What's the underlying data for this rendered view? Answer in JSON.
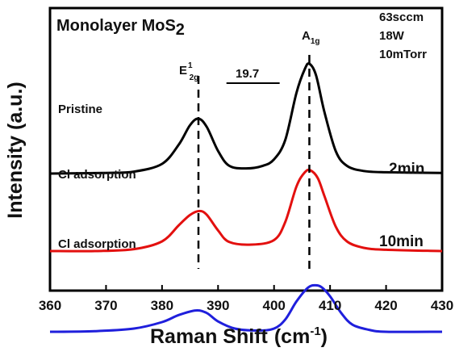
{
  "chart_data": {
    "type": "line",
    "title": "Monolayer MoS",
    "title_subscript": "2",
    "conditions": [
      "63sccm",
      "18W",
      "10mTorr"
    ],
    "xlabel": "Raman Shift",
    "xlabel_units": "(cm",
    "xlabel_units_sup": "-1",
    "xlabel_units_close": ")",
    "ylabel": "Intensity (a.u.)",
    "xlim": [
      360,
      430
    ],
    "xticks": [
      "360",
      "370",
      "380",
      "390",
      "400",
      "410",
      "420",
      "430"
    ],
    "yticks": "none",
    "grid": false,
    "legend": "none",
    "peak_E": {
      "base": "E",
      "sup": "1",
      "sub": "2g",
      "x": 386.5
    },
    "peak_A": {
      "base": "A",
      "sub": "1g",
      "x": 406.3
    },
    "separation_label": "19.7",
    "separation_bar": [
      391.5,
      401
    ],
    "series": [
      {
        "name": "Pristine",
        "label": "Pristine",
        "time_label": "",
        "color": "#000000",
        "baseline": 1.1,
        "points": [
          [
            360,
            1.1
          ],
          [
            370,
            1.11
          ],
          [
            375,
            1.13
          ],
          [
            380,
            1.25
          ],
          [
            383,
            1.55
          ],
          [
            385,
            1.85
          ],
          [
            386.5,
            1.95
          ],
          [
            388,
            1.82
          ],
          [
            390,
            1.45
          ],
          [
            392,
            1.22
          ],
          [
            395,
            1.18
          ],
          [
            398,
            1.22
          ],
          [
            400,
            1.32
          ],
          [
            402,
            1.62
          ],
          [
            404,
            2.35
          ],
          [
            405.5,
            2.72
          ],
          [
            406.3,
            2.8
          ],
          [
            407.5,
            2.62
          ],
          [
            409,
            2.05
          ],
          [
            411,
            1.45
          ],
          [
            413,
            1.22
          ],
          [
            416,
            1.14
          ],
          [
            420,
            1.12
          ],
          [
            430,
            1.11
          ]
        ]
      },
      {
        "name": "Cl adsorption 2min",
        "label": "Cl adsorption",
        "time_label": "2min",
        "color": "#e3100f",
        "baseline": -0.1,
        "points": [
          [
            360,
            -0.1
          ],
          [
            368,
            -0.1
          ],
          [
            375,
            -0.07
          ],
          [
            380,
            0.05
          ],
          [
            383,
            0.3
          ],
          [
            385,
            0.46
          ],
          [
            386.7,
            0.52
          ],
          [
            388,
            0.46
          ],
          [
            390,
            0.22
          ],
          [
            392,
            0.04
          ],
          [
            396,
            0.0
          ],
          [
            400,
            0.07
          ],
          [
            402,
            0.35
          ],
          [
            404,
            0.9
          ],
          [
            405.5,
            1.12
          ],
          [
            406.5,
            1.15
          ],
          [
            407.8,
            1.03
          ],
          [
            409,
            0.75
          ],
          [
            411,
            0.28
          ],
          [
            413,
            0.05
          ],
          [
            416,
            -0.05
          ],
          [
            420,
            -0.08
          ],
          [
            430,
            -0.1
          ]
        ]
      },
      {
        "name": "Cl adsorption 10min",
        "label": "Cl adsorption",
        "time_label": "10min",
        "color": "#1f1fdc",
        "baseline": -1.35,
        "points": [
          [
            360,
            -1.35
          ],
          [
            368,
            -1.34
          ],
          [
            375,
            -1.3
          ],
          [
            380,
            -1.2
          ],
          [
            383,
            -1.09
          ],
          [
            386,
            -1.02
          ],
          [
            388,
            -1.06
          ],
          [
            390,
            -1.19
          ],
          [
            393,
            -1.3
          ],
          [
            397,
            -1.33
          ],
          [
            400,
            -1.3
          ],
          [
            402,
            -1.16
          ],
          [
            404,
            -0.88
          ],
          [
            406,
            -0.67
          ],
          [
            407.3,
            -0.63
          ],
          [
            408.5,
            -0.66
          ],
          [
            410,
            -0.8
          ],
          [
            412,
            -1.06
          ],
          [
            414,
            -1.24
          ],
          [
            417,
            -1.32
          ],
          [
            420,
            -1.35
          ],
          [
            430,
            -1.35
          ]
        ]
      }
    ]
  }
}
